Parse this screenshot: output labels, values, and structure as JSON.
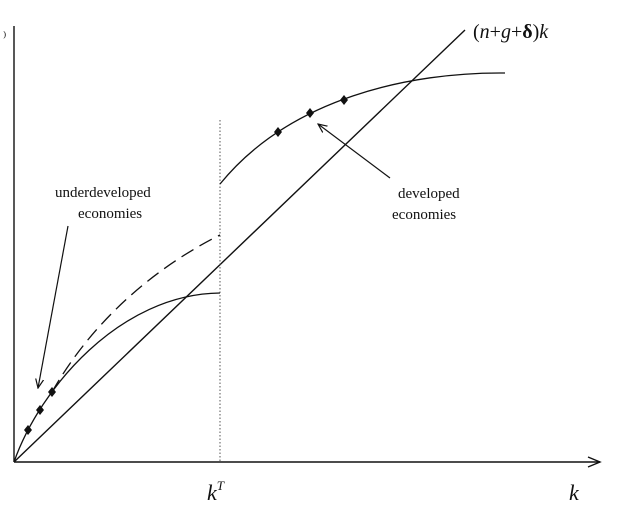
{
  "diagram": {
    "line_label": {
      "open": "(",
      "n": "n",
      "plus1": "+",
      "g": "g",
      "plus2": "+",
      "delta": "δ",
      "close": ")",
      "k": "k"
    },
    "annotations": {
      "underdeveloped": [
        "underdeveloped",
        "economies"
      ],
      "developed": [
        "developed",
        "economies"
      ]
    },
    "axis": {
      "x_label": "k",
      "threshold_label_base": "k",
      "threshold_label_sup": "T"
    },
    "y_axis_mark": "⁾"
  }
}
